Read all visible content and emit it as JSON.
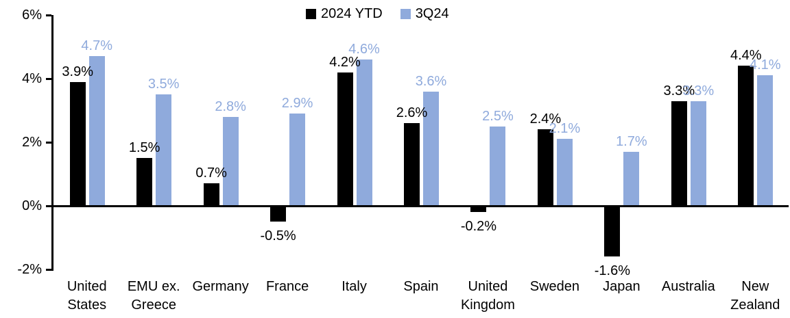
{
  "chart_data": {
    "type": "bar",
    "title": "",
    "xlabel": "",
    "ylabel": "",
    "ylim": [
      -2,
      6
    ],
    "grid": false,
    "legend_position": "top-center",
    "y_ticks": [
      {
        "value": 6,
        "label": "6%"
      },
      {
        "value": 4,
        "label": "4%"
      },
      {
        "value": 2,
        "label": "2%"
      },
      {
        "value": 0,
        "label": "0%"
      },
      {
        "value": -2,
        "label": "-2%"
      }
    ],
    "categories": [
      "United\nStates",
      "EMU ex.\nGreece",
      "Germany",
      "France",
      "Italy",
      "Spain",
      "United\nKingdom",
      "Sweden",
      "Japan",
      "Australia",
      "New\nZealand"
    ],
    "series": [
      {
        "name": "2024 YTD",
        "color": "#000000",
        "values": [
          3.9,
          1.5,
          0.7,
          -0.5,
          4.2,
          2.6,
          -0.2,
          2.4,
          -1.6,
          3.3,
          4.4
        ],
        "labels": [
          "3.9%",
          "1.5%",
          "0.7%",
          "-0.5%",
          "4.2%",
          "2.6%",
          "-0.2%",
          "2.4%",
          "-1.6%",
          "3.3%",
          "4.4%"
        ]
      },
      {
        "name": "3Q24",
        "color": "#8FAADC",
        "values": [
          4.7,
          3.5,
          2.8,
          2.9,
          4.6,
          3.6,
          2.5,
          2.1,
          1.7,
          3.3,
          4.1
        ],
        "labels": [
          "4.7%",
          "3.5%",
          "2.8%",
          "2.9%",
          "4.6%",
          "3.6%",
          "2.5%",
          "2.1%",
          "1.7%",
          "3.3%",
          "4.1%"
        ]
      }
    ],
    "axis_color": "#000000"
  }
}
